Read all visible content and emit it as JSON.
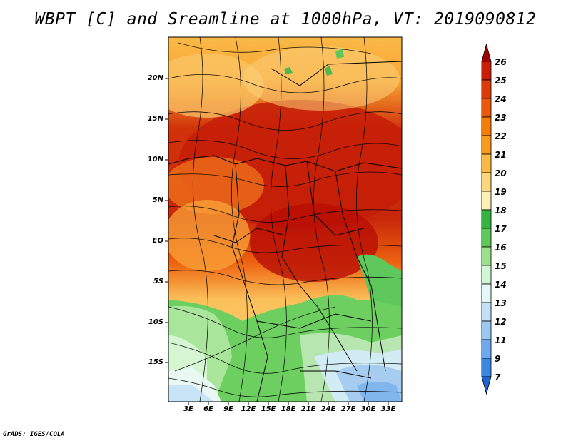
{
  "title": "WBPT [C] and Sreamline at 1000hPa, VT: 2019090812",
  "footer": "GrADS: IGES/COLA",
  "map": {
    "lat_range": [
      -20,
      24
    ],
    "lon_range": [
      0,
      35
    ],
    "lat_ticks": [
      "20N",
      "15N",
      "10N",
      "5N",
      "EQ",
      "5S",
      "10S",
      "15S"
    ],
    "lon_ticks": [
      "3E",
      "6E",
      "9E",
      "12E",
      "15E",
      "18E",
      "21E",
      "24E",
      "27E",
      "30E",
      "33E"
    ]
  },
  "colorbar": {
    "labels": [
      "26",
      "25",
      "24",
      "23",
      "22",
      "21",
      "20",
      "19",
      "18",
      "17",
      "16",
      "15",
      "14",
      "13",
      "12",
      "11",
      "9",
      "7"
    ],
    "colors": [
      "#a50000",
      "#c81e0a",
      "#dc3c0a",
      "#eb5a0a",
      "#f57d0a",
      "#fa9b1e",
      "#fbba46",
      "#fcd77d",
      "#fcf0b4",
      "#37b440",
      "#5ec85a",
      "#9be08c",
      "#d2f5d2",
      "#e6f8f5",
      "#c3e1f5",
      "#9bc8f0",
      "#6eaaeb",
      "#3c87e1",
      "#1e64d2"
    ]
  }
}
